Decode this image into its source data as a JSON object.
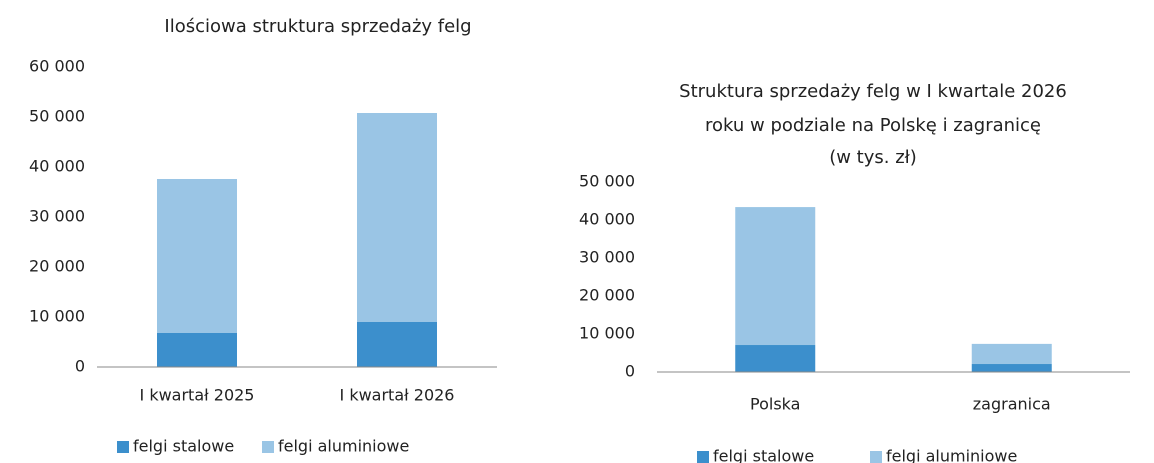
{
  "chart_data": [
    {
      "type": "bar",
      "stacked": true,
      "title": [
        "Ilościowa struktura sprzedaży felg"
      ],
      "categories": [
        "I kwartał 2025",
        "I kwartał 2026"
      ],
      "series": [
        {
          "name": "felgi stalowe",
          "color": "#3c8fcc",
          "values": [
            6800,
            9000
          ]
        },
        {
          "name": "felgi aluminiowe",
          "color": "#9ac5e5",
          "values": [
            30800,
            41800
          ]
        }
      ],
      "ylim": [
        0,
        60000
      ],
      "yticks": [
        0,
        {
          "value": 10000,
          "label": "10 000"
        },
        {
          "value": 20000,
          "label": "20 000"
        },
        {
          "value": 30000,
          "label": "30 000"
        },
        {
          "value": 40000,
          "label": "40 000"
        },
        {
          "value": 50000,
          "label": "50 000"
        },
        {
          "value": 60000,
          "label": "60 000"
        }
      ],
      "legend": "bottom"
    },
    {
      "type": "bar",
      "stacked": true,
      "title": [
        "Struktura sprzedaży felg w I kwartale 2026",
        "roku w podziale na Polskę i zagranicę",
        "(w tys. zł)"
      ],
      "categories": [
        "Polska",
        "zagranica"
      ],
      "series": [
        {
          "name": "felgi stalowe",
          "color": "#3c8fcc",
          "values": [
            7100,
            2100
          ]
        },
        {
          "name": "felgi aluminiowe",
          "color": "#9ac5e5",
          "values": [
            36300,
            5300
          ]
        }
      ],
      "ylim": [
        0,
        50000
      ],
      "yticks": [
        0,
        {
          "value": 10000,
          "label": "10 000"
        },
        {
          "value": 20000,
          "label": "20 000"
        },
        {
          "value": 30000,
          "label": "30 000"
        },
        {
          "value": 40000,
          "label": "40 000"
        },
        {
          "value": 50000,
          "label": "50 000"
        }
      ],
      "legend": "bottom"
    }
  ]
}
